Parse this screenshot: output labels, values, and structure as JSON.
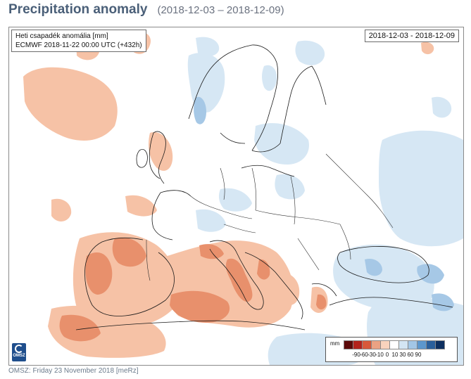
{
  "header": {
    "title": "Precipitation anomaly",
    "subtitle": "(2018-12-03 – 2018-12-09)"
  },
  "map": {
    "info_line1": "Heti csapadék anomália [mm]",
    "info_line2": "ECMWF 2018-11-22 00:00 UTC (+432h)",
    "date_range": "2018-12-03 - 2018-12-09",
    "logo_text": "OMSZ",
    "legend": {
      "unit": "mm",
      "tick_labels": [
        "-90",
        "-60",
        "-30",
        "-10",
        "0",
        "10",
        "30",
        "60",
        "90"
      ],
      "colors": [
        "#5c0a0a",
        "#b3221c",
        "#d8583a",
        "#eba283",
        "#f8d3bd",
        "#ffffff",
        "#d3e5f3",
        "#a2c6e6",
        "#5c97cd",
        "#2a5f9b",
        "#0d2f5f"
      ]
    }
  },
  "footer": {
    "text": "OMSZ: Friday 23 November 2018  [meRz]"
  }
}
